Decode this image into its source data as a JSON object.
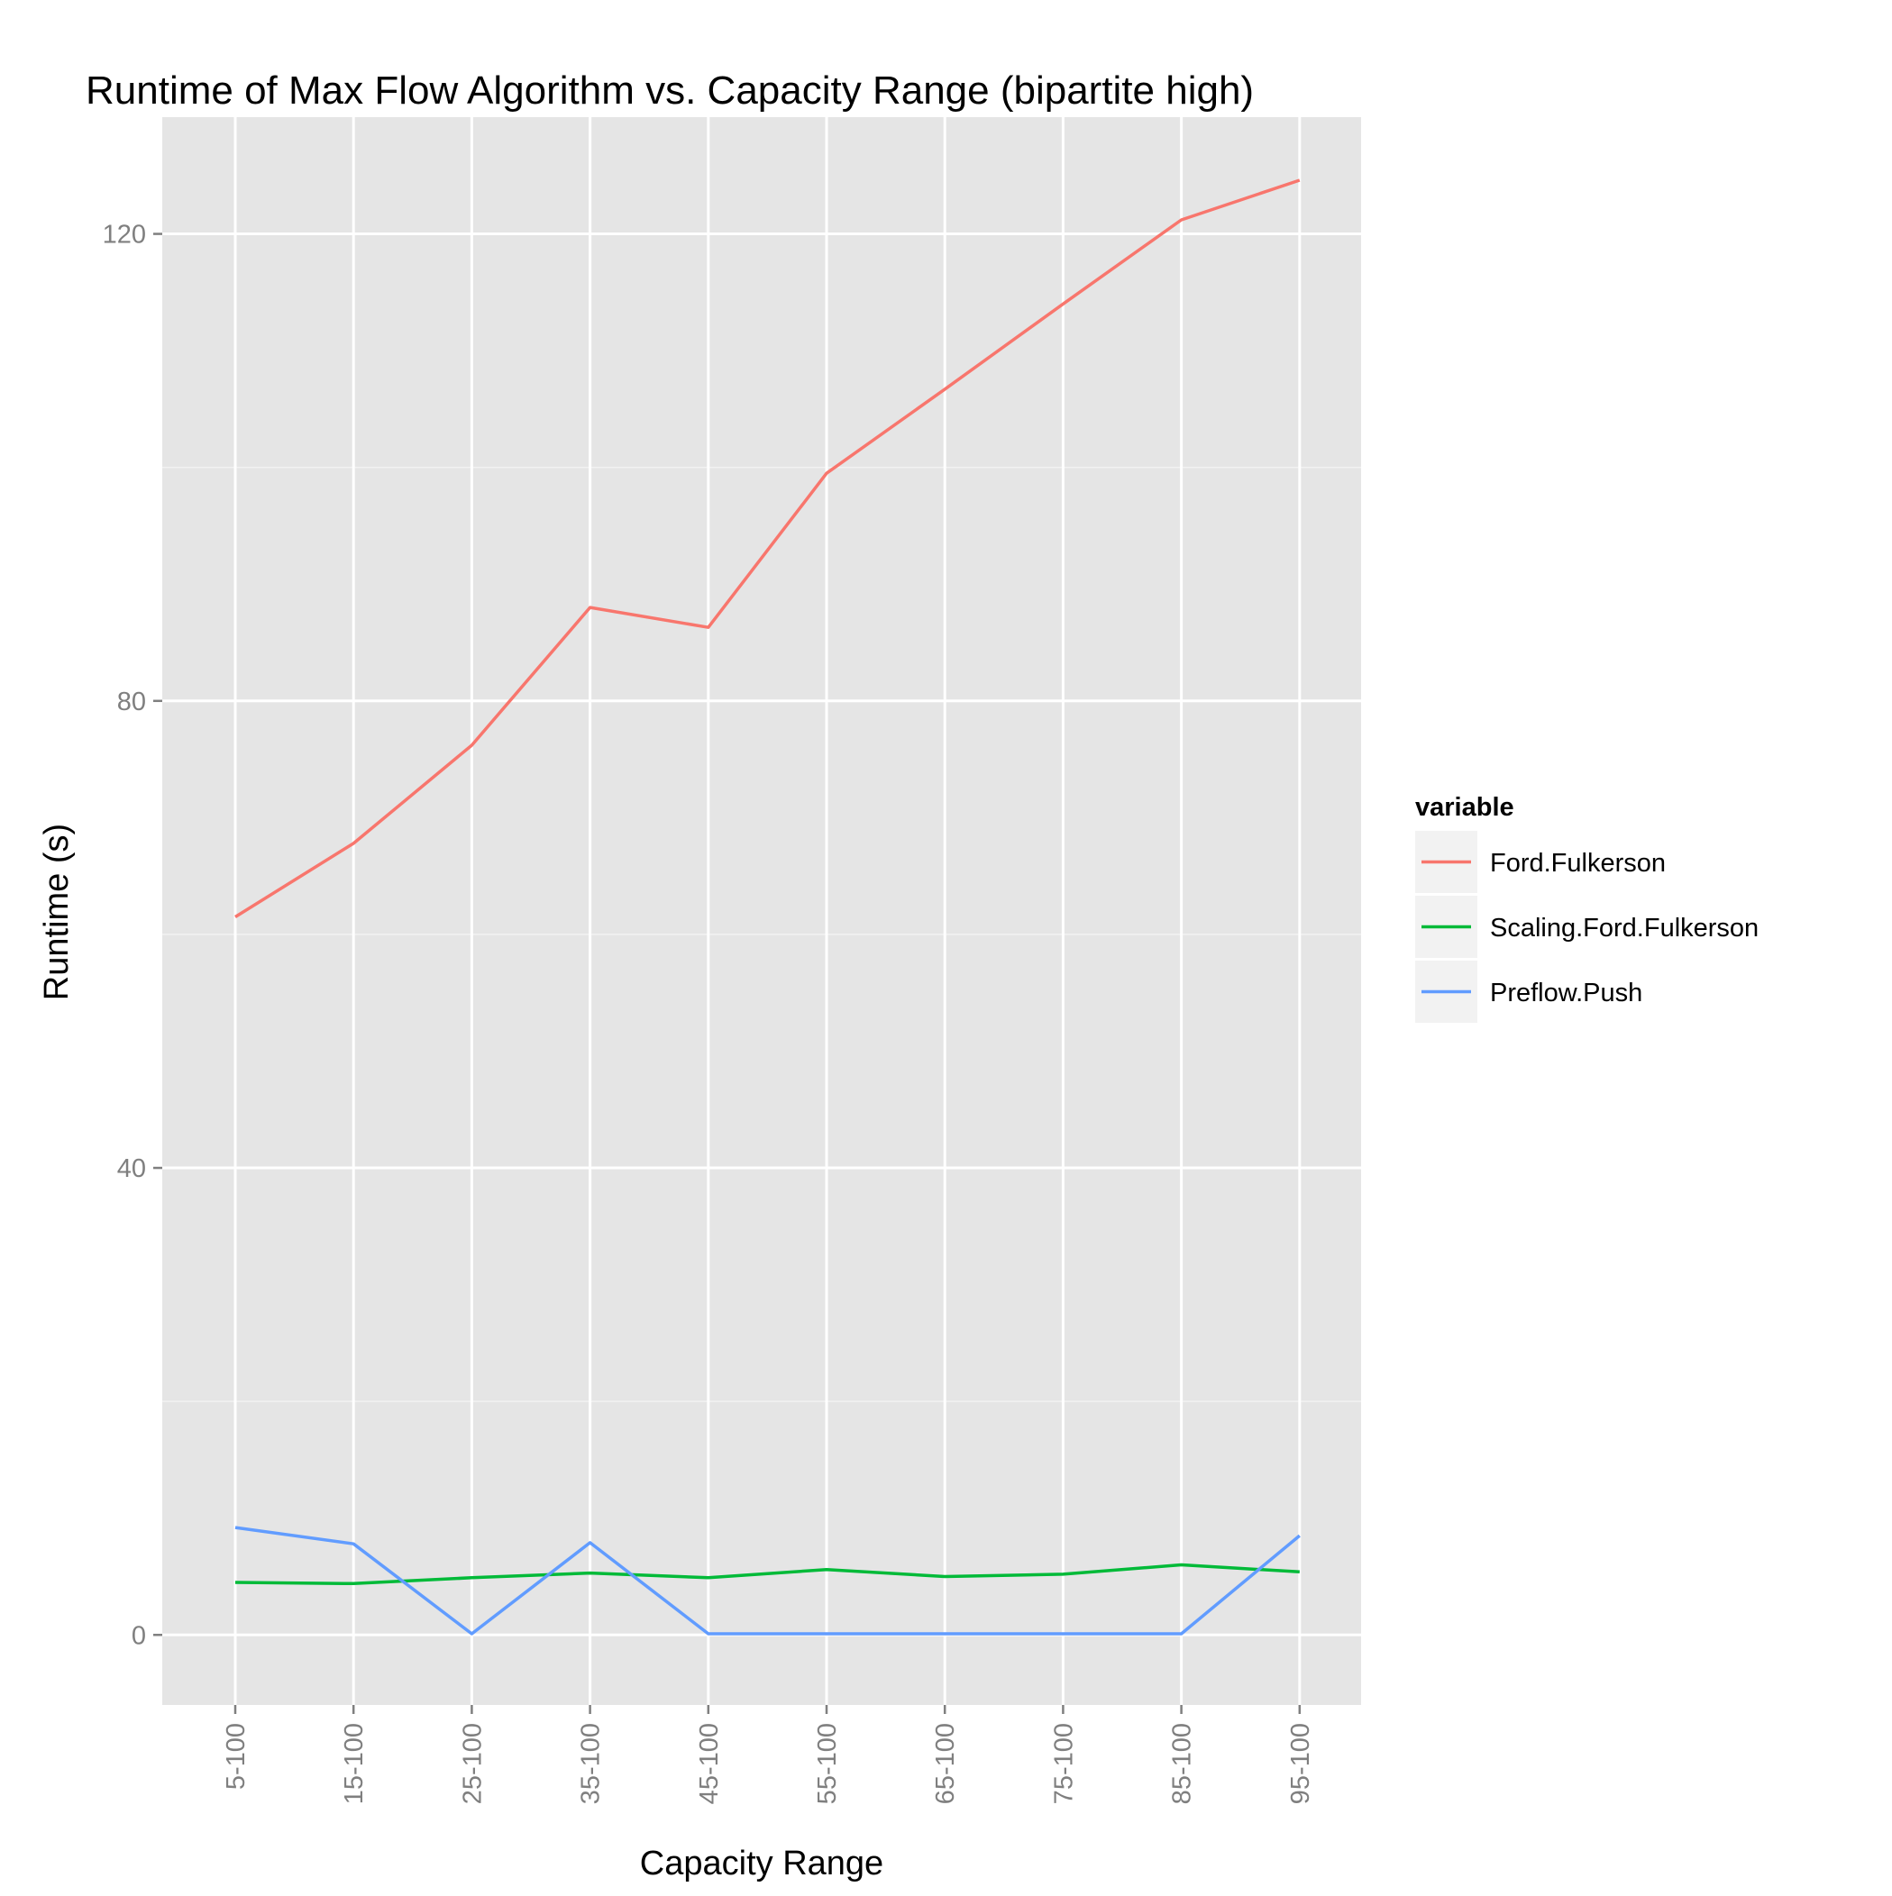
{
  "chart_data": {
    "type": "line",
    "title": "Runtime of Max Flow Algorithm vs. Capacity Range (bipartite high)",
    "xlabel": "Capacity Range",
    "ylabel": "Runtime (s)",
    "categories": [
      "5-100",
      "15-100",
      "25-100",
      "35-100",
      "45-100",
      "55-100",
      "65-100",
      "75-100",
      "85-100",
      "95-100"
    ],
    "ylim": [
      -6,
      130
    ],
    "yticks": [
      0,
      40,
      80,
      120
    ],
    "grid": true,
    "legend": {
      "title": "variable",
      "position": "right"
    },
    "series": [
      {
        "name": "Ford.Fulkerson",
        "color": "#F8766D",
        "values": [
          61.5,
          67.8,
          76.2,
          88.0,
          86.3,
          99.5,
          106.7,
          114.0,
          121.2,
          124.6
        ]
      },
      {
        "name": "Scaling.Ford.Fulkerson",
        "color": "#00BA38",
        "values": [
          4.5,
          4.4,
          4.9,
          5.3,
          4.9,
          5.6,
          5.0,
          5.2,
          6.0,
          5.4
        ]
      },
      {
        "name": "Preflow.Push",
        "color": "#619CFF",
        "values": [
          9.2,
          7.8,
          0.1,
          7.9,
          0.1,
          0.1,
          0.1,
          0.1,
          0.1,
          8.5
        ]
      }
    ]
  }
}
